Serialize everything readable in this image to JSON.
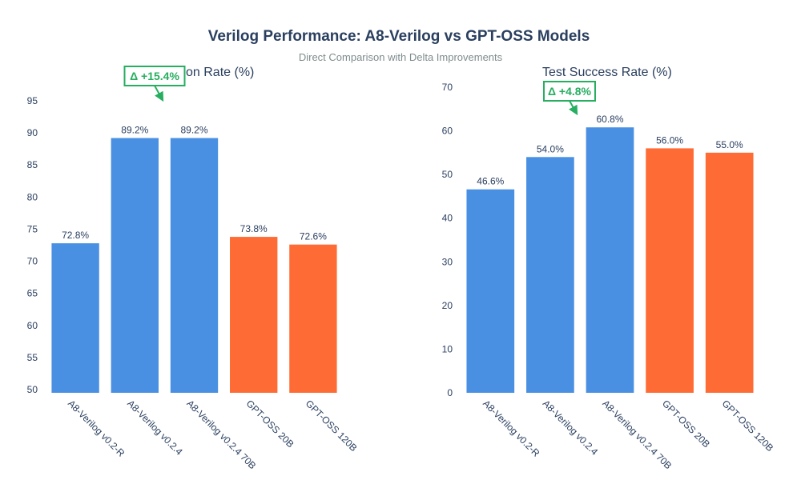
{
  "title": "Verilog Performance: A8-Verilog vs GPT-OSS Models",
  "subtitle": "Direct Comparison with Delta Improvements",
  "colors": {
    "a8": "#4a90e2",
    "gptoss": "#ff6b35",
    "delta": "#27ae60",
    "text": "#2a3f5f"
  },
  "chart_data": [
    {
      "type": "bar",
      "title": "on Rate (%)",
      "categories": [
        "A8-Verilog v0.2-R",
        "A8-Verilog v0.2.4",
        "A8-Verilog v0.2.4 70B",
        "GPT-OSS 20B",
        "GPT-OSS 120B"
      ],
      "values": [
        72.8,
        89.2,
        89.2,
        73.8,
        72.6
      ],
      "value_labels": [
        "72.8%",
        "89.2%",
        "89.2%",
        "73.8%",
        "72.6%"
      ],
      "bar_colors": [
        "#4a90e2",
        "#4a90e2",
        "#4a90e2",
        "#ff6b35",
        "#ff6b35"
      ],
      "ylim": [
        49.5,
        96
      ],
      "yticks": [
        50,
        55,
        60,
        65,
        70,
        75,
        80,
        85,
        90,
        95
      ],
      "annotation": {
        "text": "Δ +15.4%",
        "target_index": 1
      }
    },
    {
      "type": "bar",
      "title": "Test Success Rate (%)",
      "categories": [
        "A8-Verilog v0.2-R",
        "A8-Verilog v0.2.4",
        "A8-Verilog v0.2.4 70B",
        "GPT-OSS 20B",
        "GPT-OSS 120B"
      ],
      "values": [
        46.6,
        54.0,
        60.8,
        56.0,
        55.0
      ],
      "value_labels": [
        "46.6%",
        "54.0%",
        "60.8%",
        "56.0%",
        "55.0%"
      ],
      "bar_colors": [
        "#4a90e2",
        "#4a90e2",
        "#4a90e2",
        "#ff6b35",
        "#ff6b35"
      ],
      "ylim": [
        0,
        70
      ],
      "yticks": [
        0,
        10,
        20,
        30,
        40,
        50,
        60,
        70
      ],
      "annotation": {
        "text": "Δ +4.8%",
        "target_index": 2
      }
    }
  ]
}
